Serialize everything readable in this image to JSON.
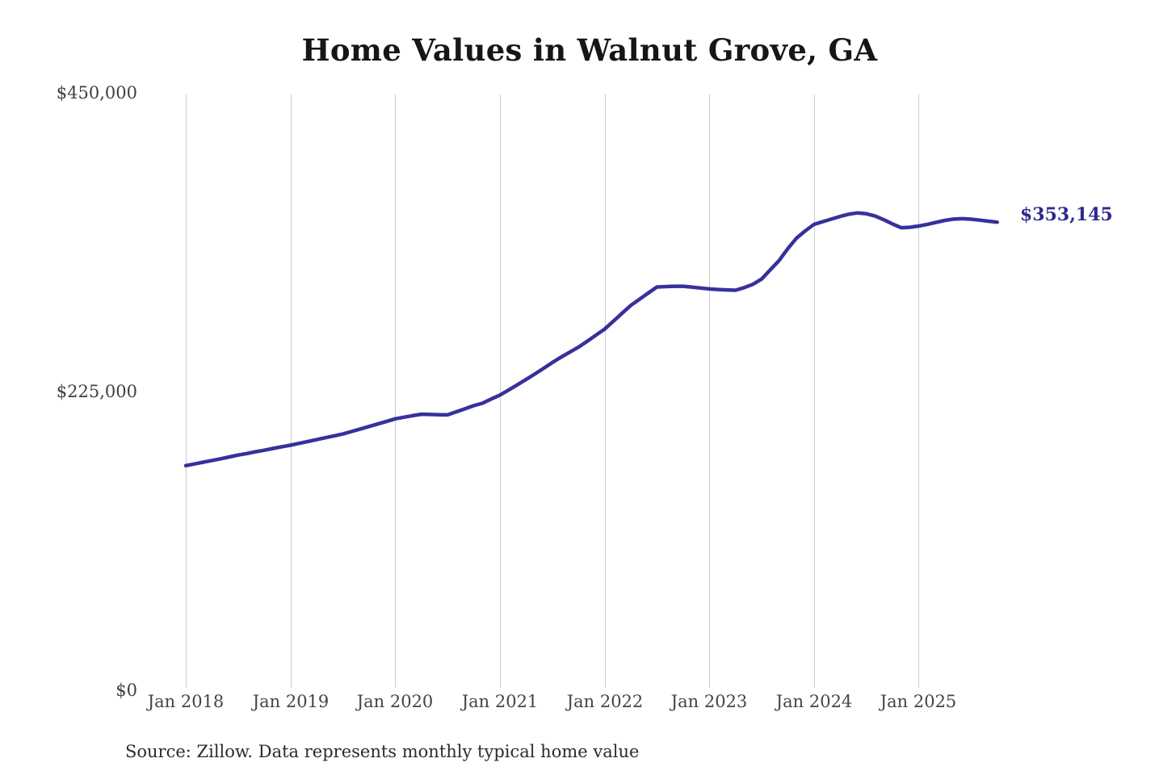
{
  "chart_data": {
    "type": "line",
    "title": "Home Values in Walnut Grove, GA",
    "source": "Source: Zillow. Data represents monthly typical home value",
    "series_name": "Monthly typical home value",
    "end_label": "$353,145",
    "end_value": 353145,
    "ylim": [
      0,
      450000
    ],
    "y_ticks": [
      "$450,000",
      "$225,000",
      "$0"
    ],
    "x_ticks": [
      "Jan 2018",
      "Jan 2019",
      "Jan 2020",
      "Jan 2021",
      "Jan 2022",
      "Jan 2023",
      "Jan 2024",
      "Jan 2025"
    ],
    "grid": "vertical-only",
    "legend": "none",
    "line_color": "#37309c",
    "label_color": "#2e2a8a",
    "gridline_color": "#c9c9c9",
    "points": [
      [
        "2018-01",
        168500
      ],
      [
        "2018-02",
        169800
      ],
      [
        "2018-03",
        171100
      ],
      [
        "2018-04",
        172400
      ],
      [
        "2018-05",
        173700
      ],
      [
        "2018-06",
        175100
      ],
      [
        "2018-07",
        176500
      ],
      [
        "2018-08",
        177700
      ],
      [
        "2018-09",
        179000
      ],
      [
        "2018-10",
        180200
      ],
      [
        "2018-11",
        181500
      ],
      [
        "2018-12",
        182800
      ],
      [
        "2019-01",
        184000
      ],
      [
        "2019-02",
        185400
      ],
      [
        "2019-03",
        186800
      ],
      [
        "2019-04",
        188200
      ],
      [
        "2019-05",
        189700
      ],
      [
        "2019-06",
        191100
      ],
      [
        "2019-07",
        192500
      ],
      [
        "2019-08",
        194400
      ],
      [
        "2019-09",
        196300
      ],
      [
        "2019-10",
        198200
      ],
      [
        "2019-11",
        200100
      ],
      [
        "2019-12",
        202000
      ],
      [
        "2020-01",
        204000
      ],
      [
        "2020-02",
        205200
      ],
      [
        "2020-03",
        206400
      ],
      [
        "2020-04",
        207500
      ],
      [
        "2020-05",
        207300
      ],
      [
        "2020-06",
        207100
      ],
      [
        "2020-07",
        207000
      ],
      [
        "2020-08",
        209300
      ],
      [
        "2020-09",
        211600
      ],
      [
        "2020-10",
        214000
      ],
      [
        "2020-11",
        215800
      ],
      [
        "2020-12",
        219000
      ],
      [
        "2021-01",
        222000
      ],
      [
        "2021-02",
        225800
      ],
      [
        "2021-03",
        229800
      ],
      [
        "2021-04",
        233800
      ],
      [
        "2021-05",
        237900
      ],
      [
        "2021-06",
        242200
      ],
      [
        "2021-07",
        246600
      ],
      [
        "2021-08",
        250700
      ],
      [
        "2021-09",
        254500
      ],
      [
        "2021-10",
        258300
      ],
      [
        "2021-11",
        262800
      ],
      [
        "2021-12",
        267400
      ],
      [
        "2022-01",
        272000
      ],
      [
        "2022-02",
        278000
      ],
      [
        "2022-03",
        284000
      ],
      [
        "2022-04",
        290000
      ],
      [
        "2022-05",
        294700
      ],
      [
        "2022-06",
        299400
      ],
      [
        "2022-07",
        304000
      ],
      [
        "2022-08",
        304300
      ],
      [
        "2022-09",
        304500
      ],
      [
        "2022-10",
        304500
      ],
      [
        "2022-11",
        303900
      ],
      [
        "2022-12",
        303200
      ],
      [
        "2023-01",
        302500
      ],
      [
        "2023-02",
        302100
      ],
      [
        "2023-03",
        301800
      ],
      [
        "2023-04",
        301500
      ],
      [
        "2023-05",
        303500
      ],
      [
        "2023-06",
        306000
      ],
      [
        "2023-07",
        310000
      ],
      [
        "2023-08",
        317000
      ],
      [
        "2023-09",
        324000
      ],
      [
        "2023-10",
        333000
      ],
      [
        "2023-11",
        341000
      ],
      [
        "2023-12",
        346500
      ],
      [
        "2024-01",
        351400
      ],
      [
        "2024-02",
        353500
      ],
      [
        "2024-03",
        355500
      ],
      [
        "2024-04",
        357500
      ],
      [
        "2024-05",
        359200
      ],
      [
        "2024-06",
        360200
      ],
      [
        "2024-07",
        359500
      ],
      [
        "2024-08",
        357800
      ],
      [
        "2024-09",
        355000
      ],
      [
        "2024-10",
        351800
      ],
      [
        "2024-11",
        348900
      ],
      [
        "2024-12",
        349300
      ],
      [
        "2025-01",
        350200
      ],
      [
        "2025-02",
        351500
      ],
      [
        "2025-03",
        353000
      ],
      [
        "2025-04",
        354500
      ],
      [
        "2025-05",
        355500
      ],
      [
        "2025-06",
        355800
      ],
      [
        "2025-07",
        355400
      ],
      [
        "2025-08",
        354700
      ],
      [
        "2025-09",
        353900
      ],
      [
        "2025-10",
        353145
      ]
    ]
  }
}
